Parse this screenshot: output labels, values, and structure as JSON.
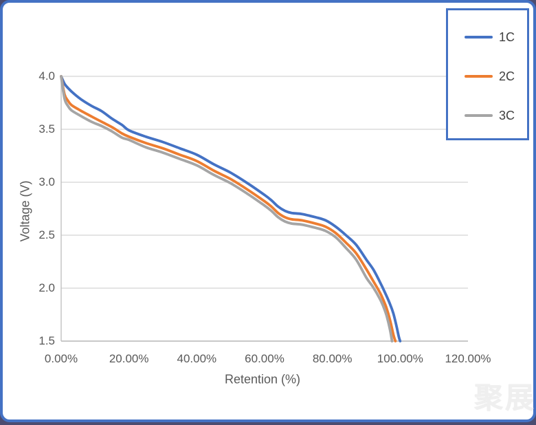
{
  "watermark": {
    "text": "聚展"
  },
  "colors": {
    "frame_border": "#4472c4",
    "legend_border": "#4472c4",
    "gridline": "#dcdcdc",
    "axis_line": "#c0c0c0",
    "tick_label": "#595959",
    "series_1c": "#4472c4",
    "series_2c": "#ed7d31",
    "series_3c": "#a5a5a5"
  },
  "chart_data": {
    "type": "line",
    "title": "",
    "xlabel": "Retention (%)",
    "ylabel": "Voltage (V)",
    "xlim": [
      0,
      120
    ],
    "ylim": [
      1.5,
      4.0
    ],
    "grid": "horizontal",
    "legend_position": "top-right",
    "x_ticks": {
      "values": [
        0,
        20,
        40,
        60,
        80,
        100,
        120
      ],
      "labels": [
        "0.00%",
        "20.00%",
        "40.00%",
        "60.00%",
        "80.00%",
        "100.00%",
        "120.00%"
      ]
    },
    "y_ticks": {
      "values": [
        1.5,
        2.0,
        2.5,
        3.0,
        3.5,
        4.0
      ],
      "labels": [
        "1.5",
        "2.0",
        "2.5",
        "3.0",
        "3.5",
        "4.0"
      ]
    },
    "series": [
      {
        "name": "1C",
        "color": "#4472c4",
        "points": [
          [
            0,
            4.0
          ],
          [
            1,
            3.93
          ],
          [
            2,
            3.89
          ],
          [
            4,
            3.83
          ],
          [
            6,
            3.78
          ],
          [
            9,
            3.72
          ],
          [
            12,
            3.67
          ],
          [
            15,
            3.6
          ],
          [
            18,
            3.54
          ],
          [
            20,
            3.49
          ],
          [
            25,
            3.43
          ],
          [
            30,
            3.38
          ],
          [
            35,
            3.32
          ],
          [
            40,
            3.26
          ],
          [
            45,
            3.17
          ],
          [
            50,
            3.09
          ],
          [
            55,
            2.99
          ],
          [
            60,
            2.88
          ],
          [
            62,
            2.83
          ],
          [
            64,
            2.77
          ],
          [
            66,
            2.73
          ],
          [
            68,
            2.71
          ],
          [
            71,
            2.7
          ],
          [
            75,
            2.67
          ],
          [
            78,
            2.64
          ],
          [
            81,
            2.58
          ],
          [
            84,
            2.5
          ],
          [
            87,
            2.41
          ],
          [
            90,
            2.27
          ],
          [
            92,
            2.18
          ],
          [
            94,
            2.06
          ],
          [
            95.5,
            1.96
          ],
          [
            97,
            1.85
          ],
          [
            98,
            1.76
          ],
          [
            99,
            1.63
          ],
          [
            99.6,
            1.54
          ],
          [
            100,
            1.5
          ]
        ]
      },
      {
        "name": "2C",
        "color": "#ed7d31",
        "points": [
          [
            0,
            4.0
          ],
          [
            1,
            3.83
          ],
          [
            2,
            3.77
          ],
          [
            3,
            3.73
          ],
          [
            5,
            3.69
          ],
          [
            9,
            3.62
          ],
          [
            12,
            3.57
          ],
          [
            15,
            3.52
          ],
          [
            18,
            3.46
          ],
          [
            20,
            3.43
          ],
          [
            25,
            3.37
          ],
          [
            30,
            3.32
          ],
          [
            35,
            3.26
          ],
          [
            40,
            3.2
          ],
          [
            45,
            3.11
          ],
          [
            50,
            3.03
          ],
          [
            55,
            2.93
          ],
          [
            60,
            2.82
          ],
          [
            62,
            2.77
          ],
          [
            64,
            2.71
          ],
          [
            66,
            2.67
          ],
          [
            68,
            2.65
          ],
          [
            71,
            2.64
          ],
          [
            75,
            2.61
          ],
          [
            78,
            2.58
          ],
          [
            81,
            2.52
          ],
          [
            84,
            2.43
          ],
          [
            87,
            2.33
          ],
          [
            90,
            2.18
          ],
          [
            92,
            2.07
          ],
          [
            94,
            1.96
          ],
          [
            95,
            1.89
          ],
          [
            96,
            1.81
          ],
          [
            97,
            1.7
          ],
          [
            98,
            1.56
          ],
          [
            98.6,
            1.5
          ]
        ]
      },
      {
        "name": "3C",
        "color": "#a5a5a5",
        "points": [
          [
            0,
            4.0
          ],
          [
            1,
            3.79
          ],
          [
            2,
            3.72
          ],
          [
            3,
            3.68
          ],
          [
            5,
            3.64
          ],
          [
            9,
            3.57
          ],
          [
            12,
            3.53
          ],
          [
            15,
            3.48
          ],
          [
            18,
            3.42
          ],
          [
            20,
            3.4
          ],
          [
            25,
            3.33
          ],
          [
            30,
            3.28
          ],
          [
            35,
            3.22
          ],
          [
            40,
            3.16
          ],
          [
            45,
            3.07
          ],
          [
            50,
            2.99
          ],
          [
            55,
            2.89
          ],
          [
            60,
            2.78
          ],
          [
            62,
            2.73
          ],
          [
            64,
            2.67
          ],
          [
            66,
            2.63
          ],
          [
            68,
            2.61
          ],
          [
            71,
            2.6
          ],
          [
            75,
            2.57
          ],
          [
            78,
            2.54
          ],
          [
            81,
            2.48
          ],
          [
            84,
            2.38
          ],
          [
            87,
            2.27
          ],
          [
            90,
            2.1
          ],
          [
            92,
            2.01
          ],
          [
            94,
            1.9
          ],
          [
            95,
            1.83
          ],
          [
            96,
            1.74
          ],
          [
            97,
            1.61
          ],
          [
            97.6,
            1.5
          ]
        ]
      }
    ]
  }
}
